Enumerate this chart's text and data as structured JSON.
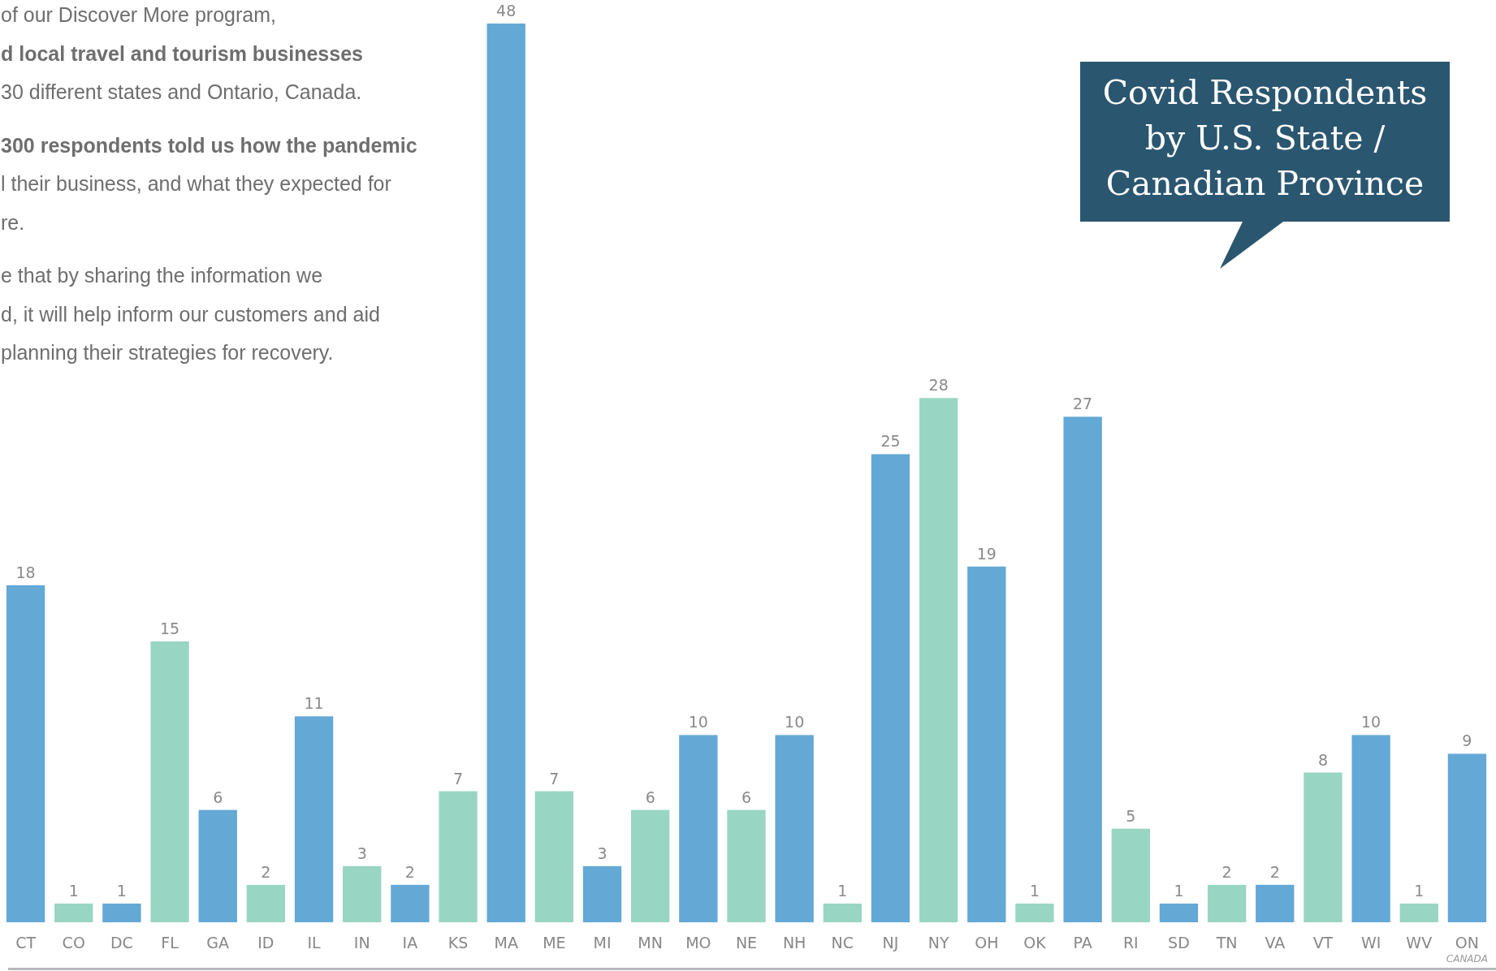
{
  "chart_data": {
    "type": "bar",
    "title": "Covid Respondents by U.S. State / Canadian Province",
    "categories": [
      "CT",
      "CO",
      "DC",
      "FL",
      "GA",
      "ID",
      "IL",
      "IN",
      "IA",
      "KS",
      "MA",
      "ME",
      "MI",
      "MN",
      "MO",
      "NE",
      "NH",
      "NC",
      "NJ",
      "NY",
      "OH",
      "OK",
      "PA",
      "RI",
      "SD",
      "TN",
      "VA",
      "VT",
      "WI",
      "WV",
      "ON"
    ],
    "values": [
      18,
      1,
      1,
      15,
      6,
      2,
      11,
      3,
      2,
      7,
      48,
      7,
      3,
      6,
      10,
      6,
      10,
      1,
      25,
      28,
      19,
      1,
      27,
      5,
      1,
      2,
      2,
      8,
      10,
      1,
      9
    ],
    "colors": [
      "#64a8d5",
      "#99d5c3",
      "#64a8d5",
      "#99d5c3",
      "#64a8d5",
      "#99d5c3",
      "#64a8d5",
      "#99d5c3",
      "#64a8d5",
      "#99d5c3",
      "#64a8d5",
      "#99d5c3",
      "#64a8d5",
      "#99d5c3",
      "#64a8d5",
      "#99d5c3",
      "#64a8d5",
      "#99d5c3",
      "#64a8d5",
      "#99d5c3",
      "#64a8d5",
      "#99d5c3",
      "#64a8d5",
      "#99d5c3",
      "#64a8d5",
      "#99d5c3",
      "#64a8d5",
      "#99d5c3",
      "#64a8d5",
      "#99d5c3",
      "#64a8d5"
    ],
    "data_labels": true,
    "annotations": [
      "of our Discover More program,",
      "d local travel and tourism businesses",
      "30 different states and Ontario, Canada.",
      "300 respondents told us how the pandemic",
      "l their business, and what they expected for",
      "re.",
      "e that by sharing the information we",
      "d, it will help inform our customers and aid",
      "planning their strategies for recovery.",
      "CANADA"
    ]
  }
}
